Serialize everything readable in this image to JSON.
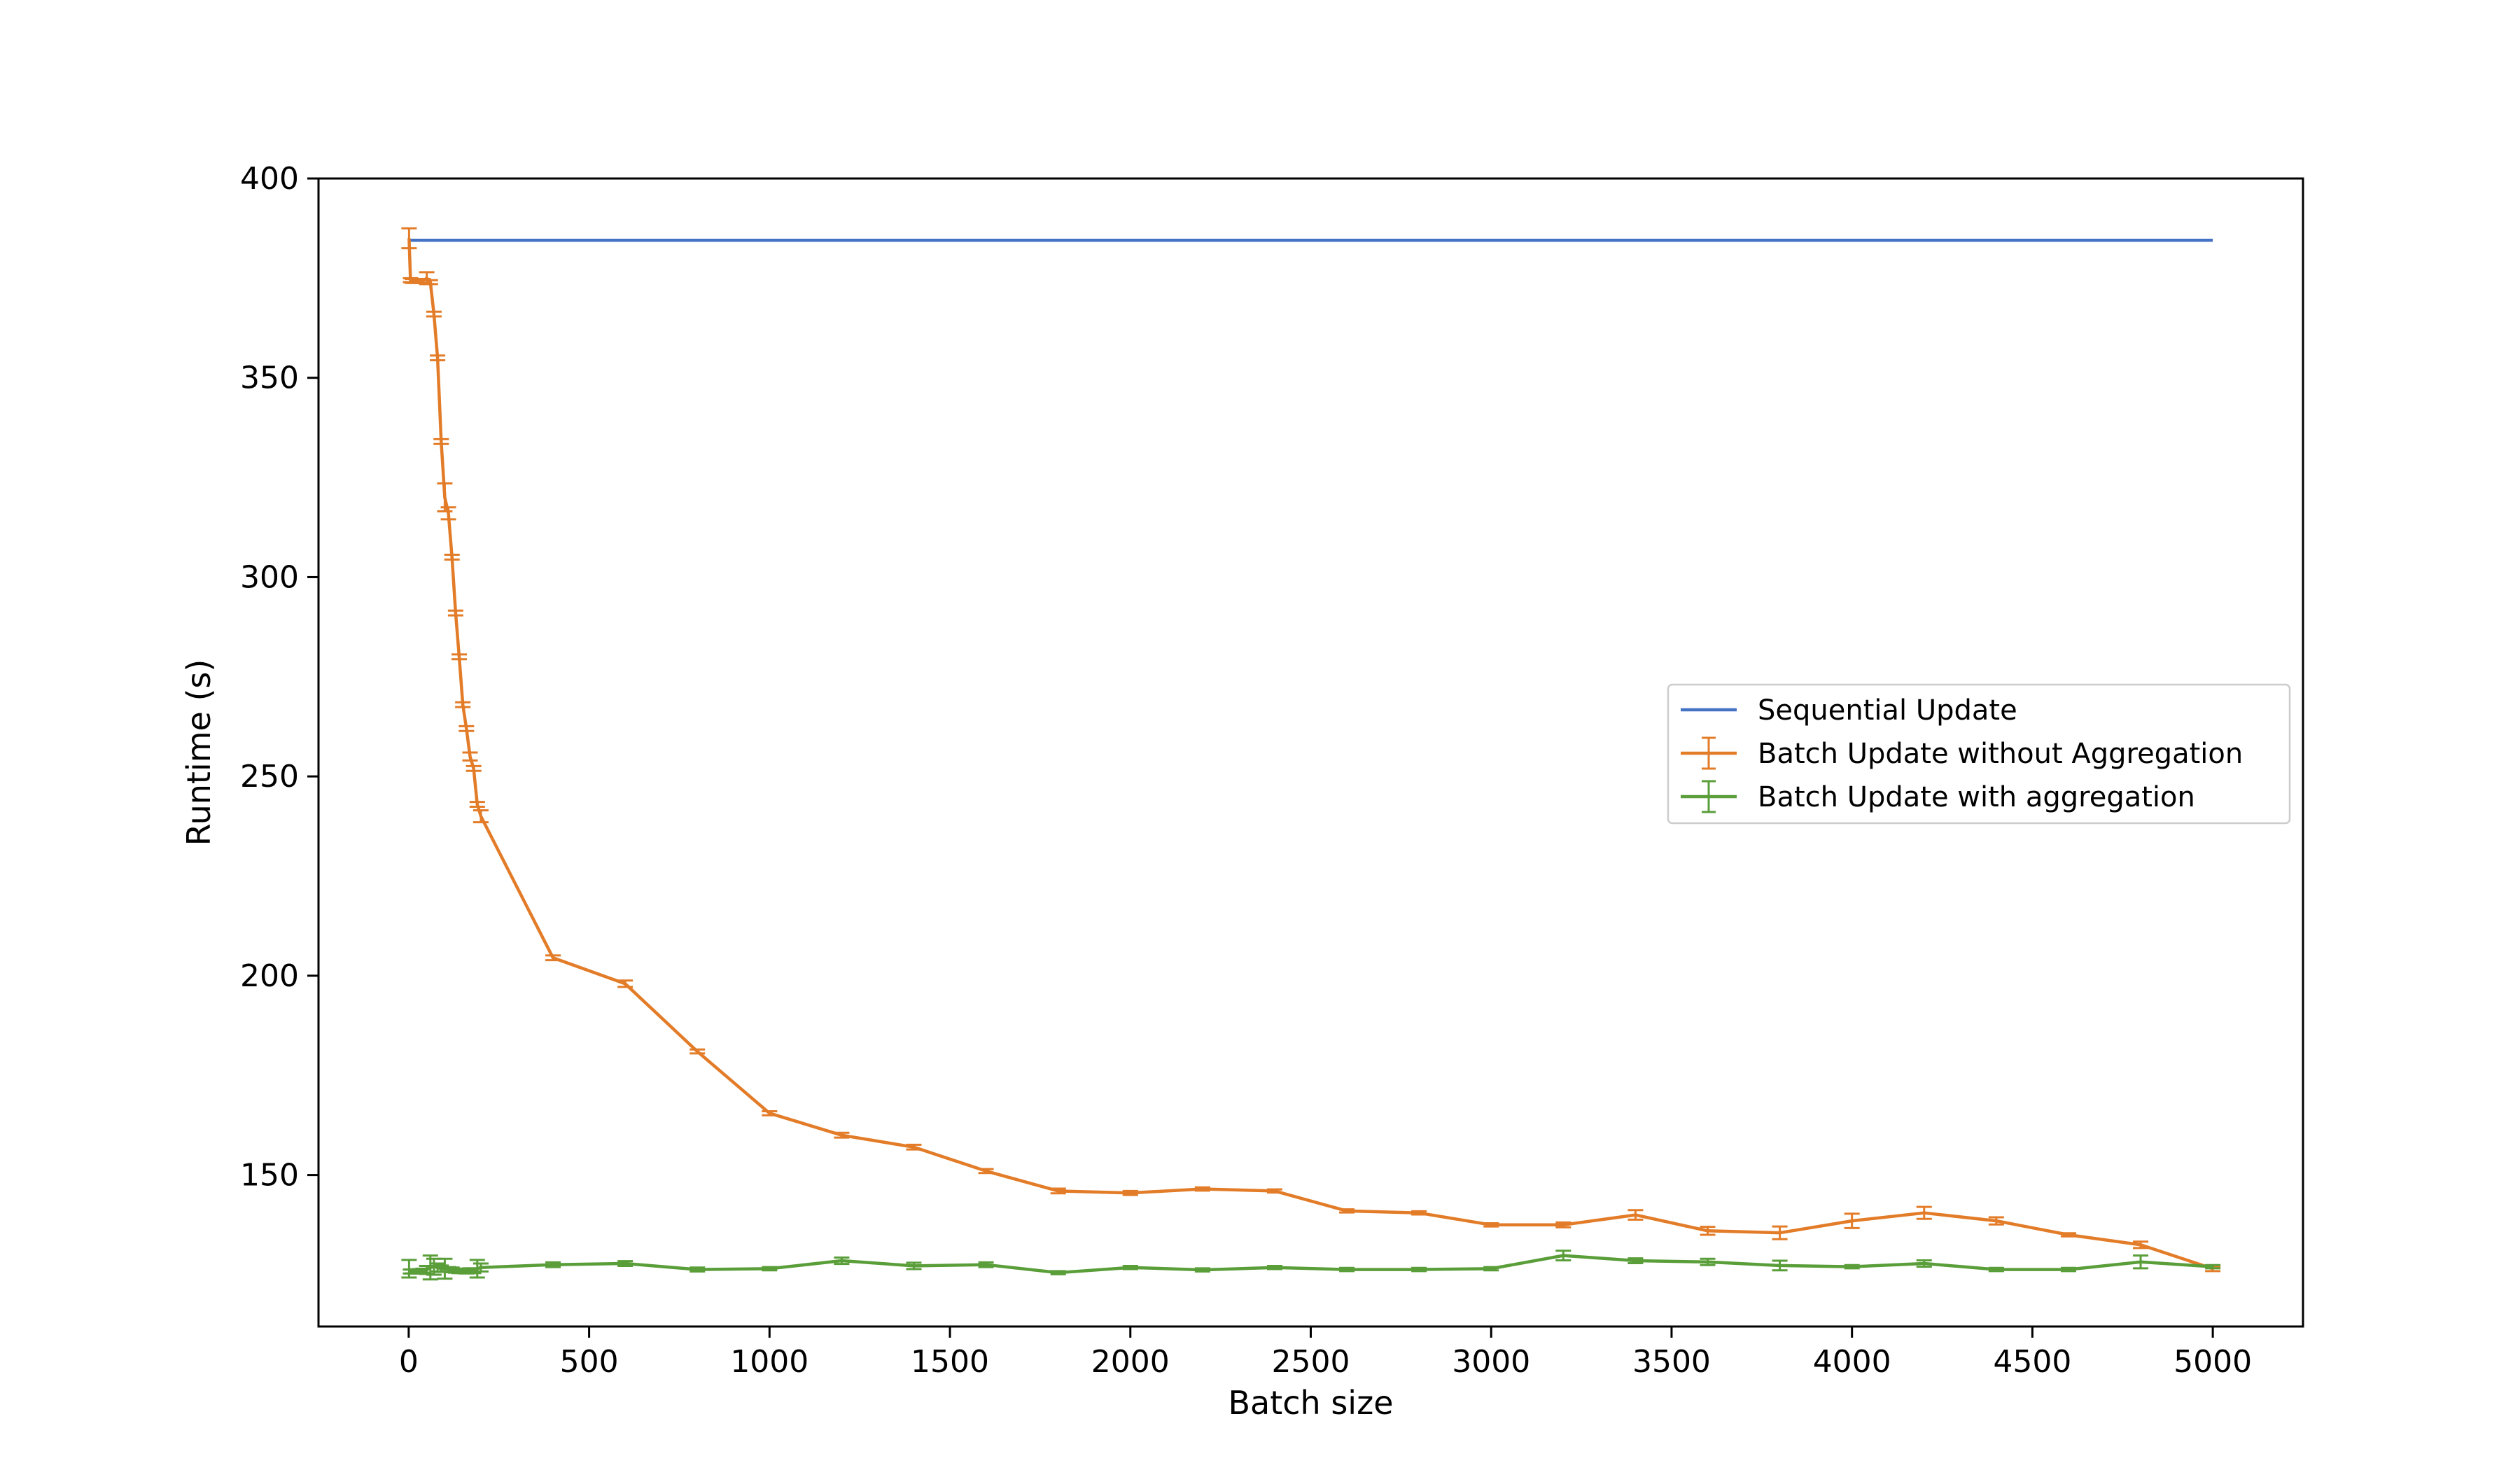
{
  "chart_data": {
    "type": "line",
    "title": "",
    "xlabel": "Batch size",
    "ylabel": "Runtime (s)",
    "xlim": [
      -250,
      5250
    ],
    "ylim": [
      112,
      400
    ],
    "xticks": [
      0,
      500,
      1000,
      1500,
      2000,
      2500,
      3000,
      3500,
      4000,
      4500,
      5000
    ],
    "yticks": [
      150,
      200,
      250,
      300,
      350,
      400
    ],
    "grid": false,
    "legend_position": "center-right",
    "series": [
      {
        "name": "Sequential Update",
        "color": "#4472c4",
        "x": [
          0,
          5000
        ],
        "y": [
          384.5,
          384.5
        ],
        "error_bars": false
      },
      {
        "name": "Batch Update without Aggregation",
        "color": "#e37c28",
        "error_bars": true,
        "x": [
          1,
          5,
          10,
          20,
          30,
          40,
          50,
          60,
          70,
          80,
          90,
          100,
          110,
          120,
          130,
          140,
          150,
          160,
          170,
          180,
          190,
          200,
          400,
          600,
          800,
          1000,
          1200,
          1400,
          1600,
          1800,
          2000,
          2200,
          2400,
          2600,
          2800,
          3000,
          3200,
          3400,
          3600,
          3800,
          4000,
          4200,
          4400,
          4600,
          4800,
          5000
        ],
        "y": [
          385,
          374.5,
          374.3,
          374.3,
          374.3,
          374.3,
          375,
          374,
          366,
          355,
          334,
          320,
          316,
          305,
          291,
          280,
          268,
          262,
          255,
          252,
          243,
          240,
          204.5,
          198,
          181,
          165.5,
          160,
          157,
          151,
          146,
          145.5,
          146.5,
          146,
          141,
          140.5,
          137.5,
          137.5,
          140,
          136,
          135.5,
          138.5,
          140.5,
          138.5,
          135,
          132.5,
          126.5
        ],
        "errors": [
          2.5,
          0.5,
          0.5,
          0.5,
          0.5,
          0.5,
          1.5,
          0.5,
          0.6,
          0.6,
          0.6,
          3.5,
          1.5,
          0.6,
          0.6,
          0.6,
          0.6,
          0.6,
          1.0,
          0.6,
          0.6,
          1.5,
          0.6,
          0.8,
          0.5,
          0.5,
          0.6,
          0.6,
          0.5,
          0.6,
          0.5,
          0.4,
          0.4,
          0.4,
          0.4,
          0.4,
          0.6,
          1.2,
          1.0,
          1.6,
          1.8,
          1.5,
          0.9,
          0.4,
          0.8,
          0.6
        ]
      },
      {
        "name": "Batch Update with aggregation",
        "color": "#5a9e3a",
        "error_bars": true,
        "x": [
          1,
          5,
          10,
          20,
          30,
          40,
          50,
          60,
          70,
          80,
          90,
          100,
          110,
          120,
          130,
          140,
          150,
          160,
          170,
          180,
          190,
          200,
          400,
          600,
          800,
          1000,
          1200,
          1400,
          1600,
          1800,
          2000,
          2200,
          2400,
          2600,
          2800,
          3000,
          3200,
          3400,
          3600,
          3800,
          4000,
          4200,
          4400,
          4600,
          4800,
          5000
        ],
        "y": [
          126.5,
          125.8,
          125.8,
          125.8,
          125.9,
          126,
          126.2,
          126.8,
          127,
          126.8,
          126.5,
          126.5,
          126.3,
          126.2,
          126,
          125.9,
          125.9,
          125.9,
          126,
          126,
          126.5,
          126.8,
          127.5,
          127.8,
          126.3,
          126.5,
          128.5,
          127.2,
          127.5,
          125.5,
          126.8,
          126.2,
          126.8,
          126.3,
          126.3,
          126.5,
          129.8,
          128.5,
          128.2,
          127.3,
          127,
          127.8,
          126.3,
          126.3,
          128.2,
          127
        ],
        "errors": [
          2.2,
          0.5,
          0.5,
          0.5,
          0.5,
          0.5,
          1.0,
          3.0,
          2.0,
          1.0,
          0.8,
          2.5,
          0.6,
          0.6,
          0.5,
          0.5,
          0.5,
          0.6,
          0.6,
          0.6,
          2.2,
          1.0,
          0.6,
          0.6,
          0.5,
          0.4,
          0.8,
          0.8,
          0.6,
          0.4,
          0.4,
          0.4,
          0.4,
          0.4,
          0.4,
          0.4,
          1.2,
          0.6,
          0.8,
          1.2,
          0.4,
          0.8,
          0.4,
          0.4,
          1.6,
          0.4
        ]
      }
    ]
  }
}
